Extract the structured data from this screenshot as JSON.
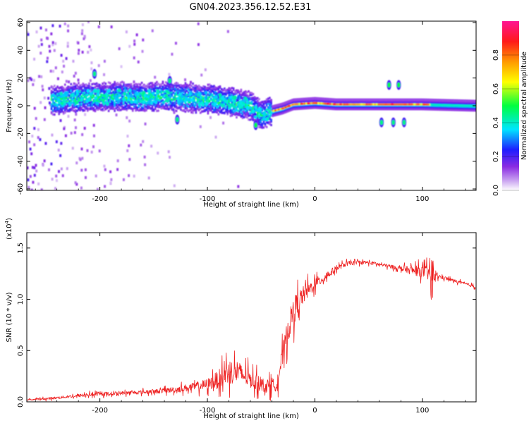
{
  "figure_title": "GN04.2023.356.12.52.E31",
  "colors": {
    "snr_line": "#ee2222",
    "axis": "#000000",
    "spectrum_low": "#8a2be2"
  },
  "chart_data": [
    {
      "type": "heatmap",
      "title": "",
      "xlabel": "Height of straight line (km)",
      "ylabel": "Frequency (Hz)",
      "xlim": [
        -268,
        150
      ],
      "ylim": [
        -61,
        61
      ],
      "x_ticks": [
        -200,
        -100,
        0,
        100
      ],
      "x_tick_labels": [
        "-200",
        "-100",
        "0",
        "100"
      ],
      "y_ticks": [
        -60,
        -40,
        -20,
        0,
        20,
        40,
        60
      ],
      "y_tick_labels": [
        "-60",
        "-40",
        "-20",
        "0",
        "20",
        "40",
        "60"
      ],
      "colorbar": {
        "label": "Normalized spectral amplitude",
        "range": [
          0,
          1
        ],
        "ticks": [
          0.0,
          0.2,
          0.4,
          0.6,
          0.8
        ],
        "tick_labels": [
          "0.0",
          "0.2",
          "0.4",
          "0.6",
          "0.8"
        ],
        "colormap": "rainbow (white-violet-blue-cyan-green-yellow-orange-red-pink)"
      },
      "spectral_ridge": [
        {
          "x": -240,
          "y": 4
        },
        {
          "x": -220,
          "y": 6
        },
        {
          "x": -200,
          "y": 6
        },
        {
          "x": -180,
          "y": 7
        },
        {
          "x": -160,
          "y": 6
        },
        {
          "x": -140,
          "y": 7
        },
        {
          "x": -120,
          "y": 6
        },
        {
          "x": -100,
          "y": 5
        },
        {
          "x": -80,
          "y": 3
        },
        {
          "x": -60,
          "y": 0
        },
        {
          "x": -50,
          "y": -6
        },
        {
          "x": -40,
          "y": -4
        },
        {
          "x": -30,
          "y": -2
        },
        {
          "x": -20,
          "y": 1
        },
        {
          "x": 0,
          "y": 2
        },
        {
          "x": 20,
          "y": 1
        },
        {
          "x": 60,
          "y": 1
        },
        {
          "x": 100,
          "y": 1
        },
        {
          "x": 150,
          "y": 0
        }
      ],
      "noise_region_xlim": [
        -268,
        -150
      ],
      "discrete_features": [
        {
          "x": -205,
          "y": 23,
          "amplitude": 0.3
        },
        {
          "x": -135,
          "y": 18,
          "amplitude": 0.3
        },
        {
          "x": -128,
          "y": -10,
          "amplitude": 0.3
        },
        {
          "x": -55,
          "y": -14,
          "amplitude": 0.35
        },
        {
          "x": 62,
          "y": -12,
          "amplitude": 0.3
        },
        {
          "x": 69,
          "y": 15,
          "amplitude": 0.35
        },
        {
          "x": 73,
          "y": -12,
          "amplitude": 0.3
        },
        {
          "x": 78,
          "y": 15,
          "amplitude": 0.35
        },
        {
          "x": 83,
          "y": -12,
          "amplitude": 0.3
        }
      ]
    },
    {
      "type": "line",
      "title": "",
      "xlabel": "Height of straight line (km)",
      "ylabel": "SNR (10 * v/v)",
      "y_scale_label": "(x10",
      "y_scale_exponent": "4",
      "xlim": [
        -268,
        150
      ],
      "ylim": [
        0,
        1.65
      ],
      "x_ticks": [
        -200,
        -100,
        0,
        100
      ],
      "x_tick_labels": [
        "-200",
        "-100",
        "0",
        "100"
      ],
      "y_ticks": [
        0.0,
        0.5,
        1.0,
        1.5
      ],
      "y_tick_labels": [
        "0.0",
        "0.5",
        "1.0",
        "1.5"
      ],
      "series": [
        {
          "x": [
            -268,
            -250,
            -230,
            -210,
            -190,
            -170,
            -150,
            -130,
            -110,
            -100,
            -90,
            -80,
            -70,
            -60,
            -50,
            -40,
            -35,
            -30,
            -25,
            -20,
            -15,
            -10,
            -5,
            0,
            10,
            20,
            30,
            40,
            50,
            60,
            70,
            80,
            90,
            100,
            105,
            108,
            112,
            120,
            130,
            140,
            150
          ],
          "values": [
            0.02,
            0.03,
            0.05,
            0.07,
            0.08,
            0.09,
            0.1,
            0.12,
            0.15,
            0.17,
            0.22,
            0.3,
            0.28,
            0.22,
            0.17,
            0.14,
            0.2,
            0.45,
            0.7,
            0.88,
            0.98,
            1.05,
            1.1,
            1.15,
            1.22,
            1.3,
            1.35,
            1.36,
            1.36,
            1.34,
            1.32,
            1.3,
            1.28,
            1.27,
            1.26,
            1.24,
            1.23,
            1.21,
            1.18,
            1.15,
            1.12
          ],
          "noise_amplitude": [
            0.01,
            0.015,
            0.02,
            0.025,
            0.025,
            0.025,
            0.03,
            0.04,
            0.06,
            0.08,
            0.12,
            0.18,
            0.15,
            0.12,
            0.1,
            0.09,
            0.12,
            0.15,
            0.18,
            0.2,
            0.16,
            0.12,
            0.1,
            0.08,
            0.06,
            0.04,
            0.03,
            0.025,
            0.025,
            0.025,
            0.025,
            0.03,
            0.06,
            0.08,
            0.1,
            0.3,
            0.04,
            0.025,
            0.02,
            0.02,
            0.02
          ]
        }
      ]
    }
  ]
}
